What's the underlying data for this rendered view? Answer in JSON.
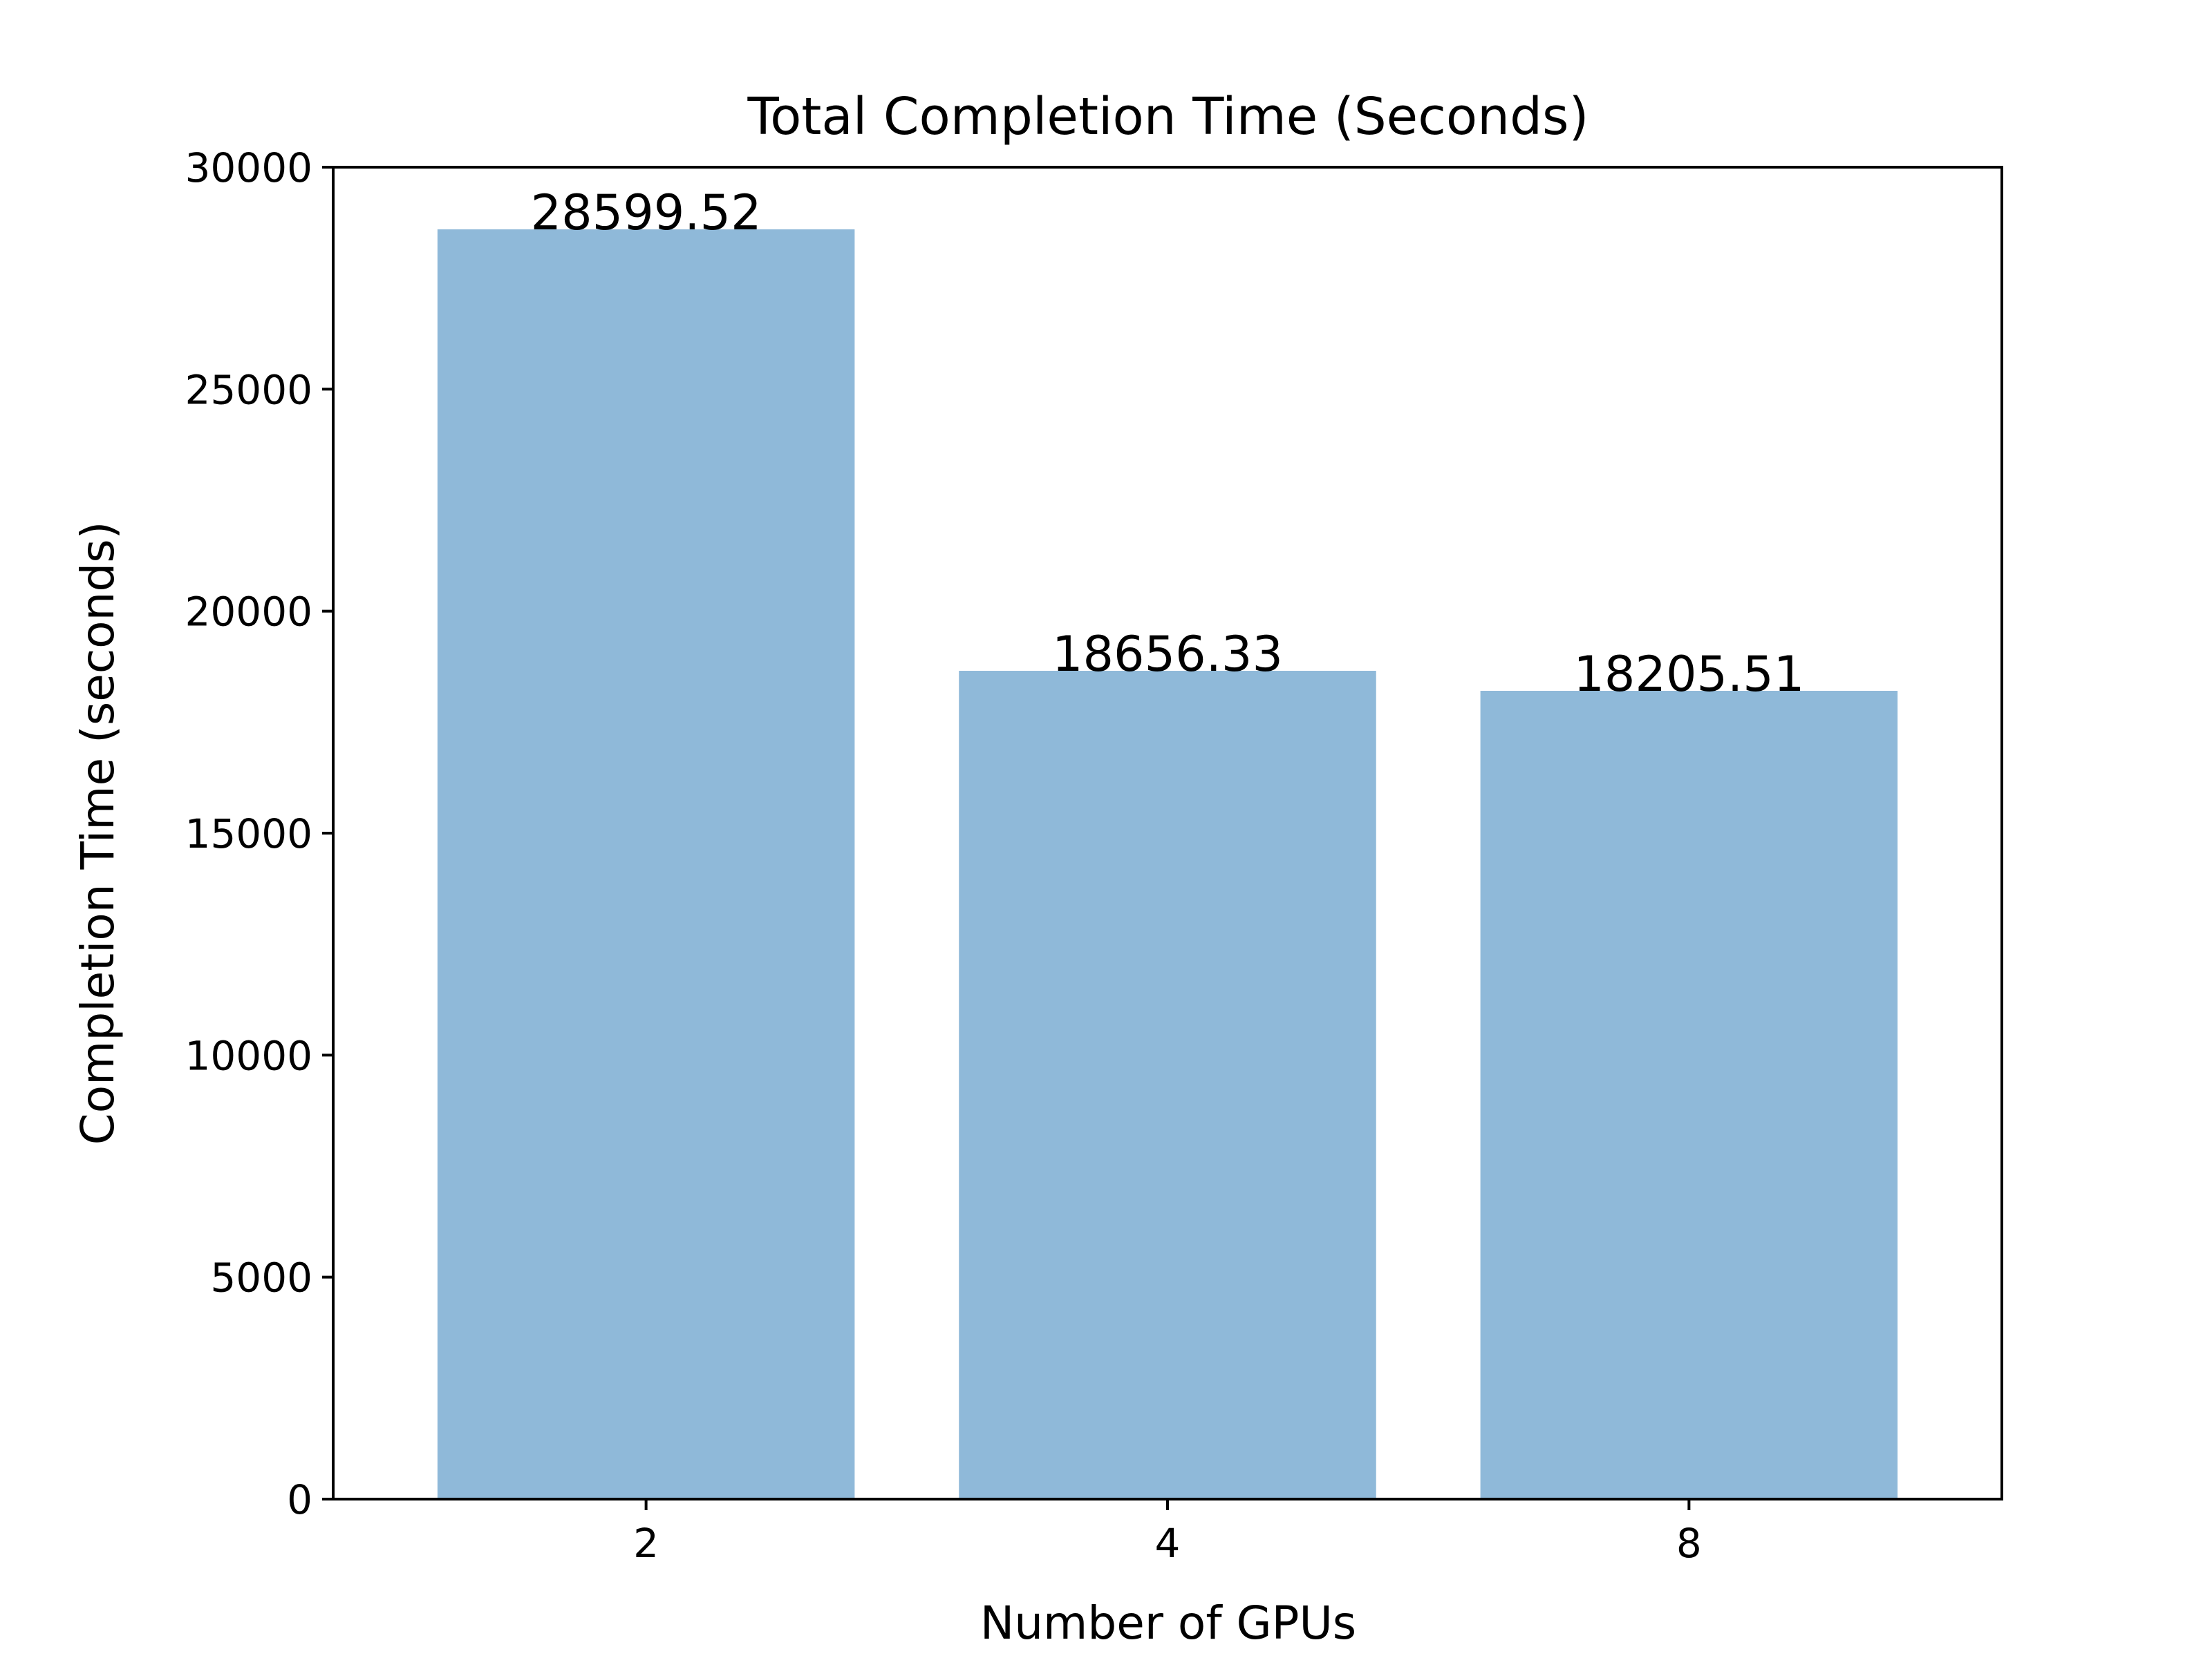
{
  "chart_data": {
    "type": "bar",
    "title": "Total Completion Time (Seconds)",
    "xlabel": "Number of GPUs",
    "ylabel": "Completion Time (seconds)",
    "categories": [
      "2",
      "4",
      "8"
    ],
    "values": [
      28599.52,
      18656.33,
      18205.51
    ],
    "value_labels": [
      "28599.52",
      "18656.33",
      "18205.51"
    ],
    "ylim": [
      0,
      30000
    ],
    "yticks": [
      0,
      5000,
      10000,
      15000,
      20000,
      25000,
      30000
    ],
    "ytick_labels": [
      "0",
      "5000",
      "10000",
      "15000",
      "20000",
      "25000",
      "30000"
    ],
    "grid": false,
    "bar_color": "#8fb9d9"
  }
}
